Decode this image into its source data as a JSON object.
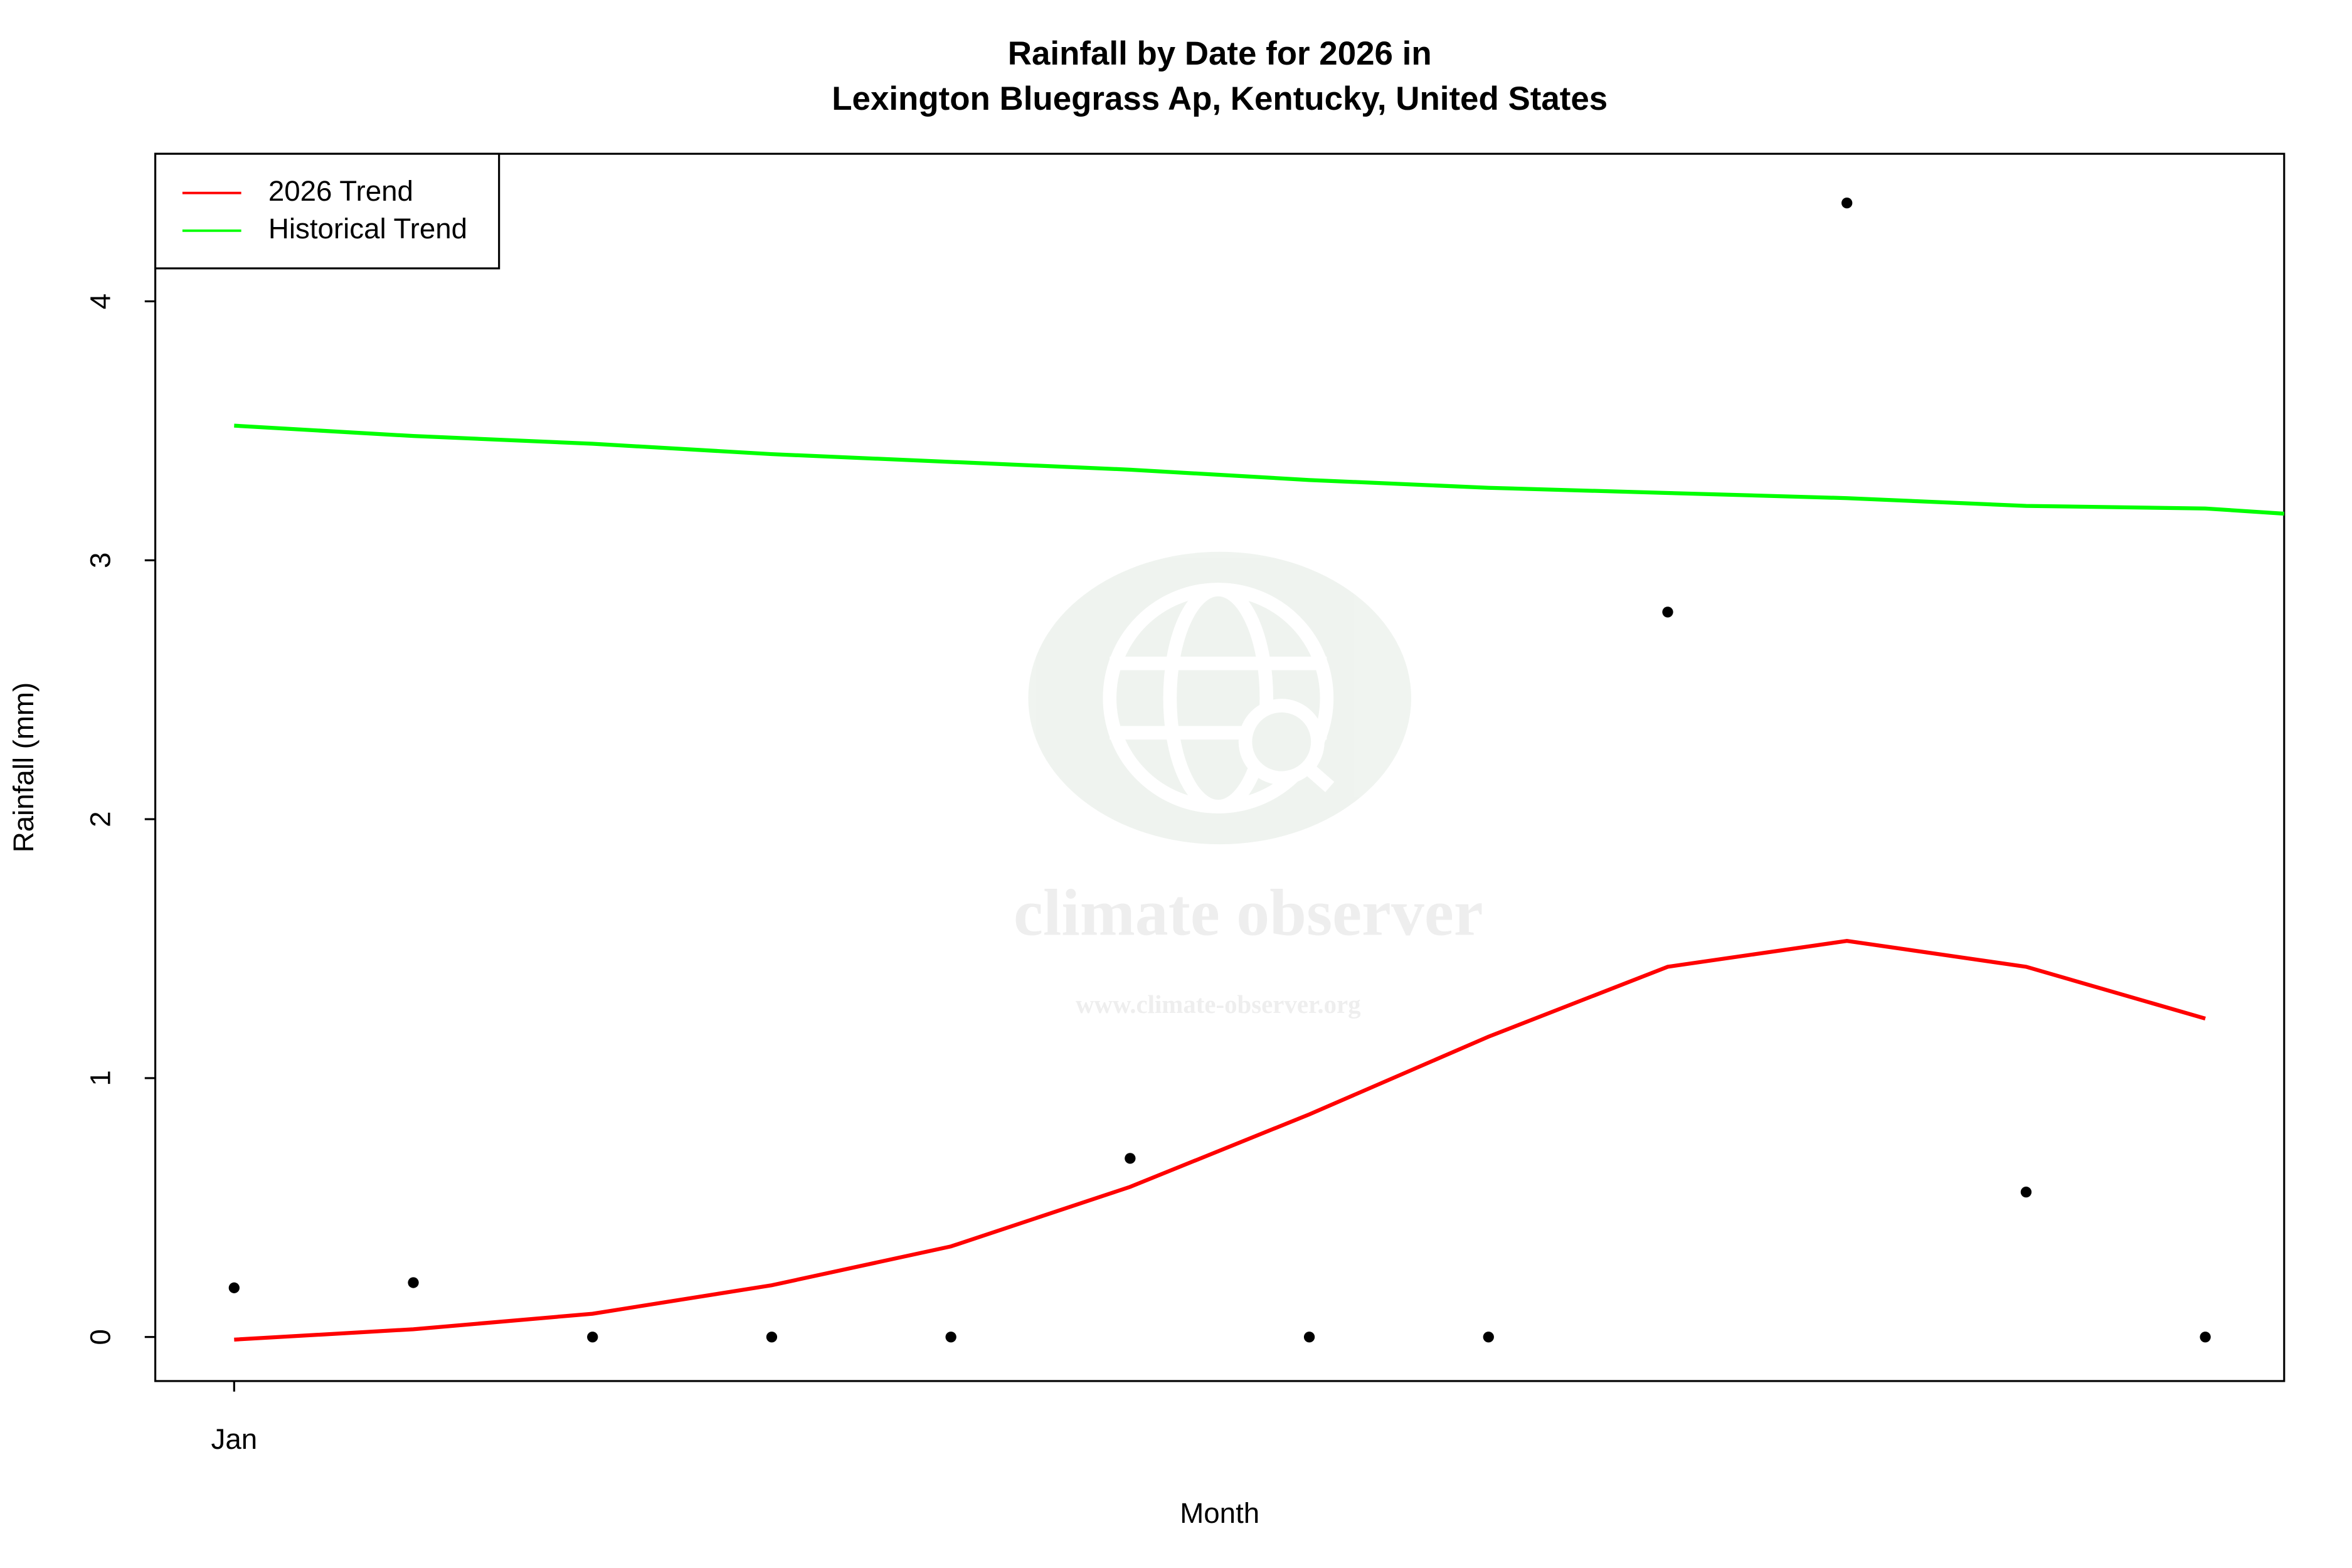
{
  "chart_data": {
    "type": "scatter",
    "title": [
      "Rainfall by Date for 2026 in",
      "Lexington Bluegrass Ap, Kentucky, United States"
    ],
    "x_label": "Month",
    "y_label": "Rainfall (mm)",
    "x": [
      1,
      2,
      3,
      4,
      5,
      6,
      7,
      8,
      9,
      10,
      11,
      12
    ],
    "xlim": [
      0.56,
      12.44
    ],
    "xticks": [
      {
        "value": 1,
        "label": "Jan"
      }
    ],
    "ylim": [
      -0.17,
      4.57
    ],
    "yticks": [
      0,
      1,
      2,
      3,
      4
    ],
    "points": {
      "color": "#000000",
      "values": [
        0.19,
        0.21,
        0,
        0,
        0,
        0.69,
        0,
        0,
        2.8,
        4.38,
        0.56,
        0
      ]
    },
    "series": [
      {
        "name": "2026 Trend",
        "color": "#ff0000",
        "x": [
          1,
          2,
          3,
          4,
          5,
          6,
          7,
          8,
          9,
          10,
          11,
          12
        ],
        "values": [
          -0.01,
          0.03,
          0.09,
          0.2,
          0.35,
          0.58,
          0.86,
          1.16,
          1.43,
          1.53,
          1.43,
          1.23
        ]
      },
      {
        "name": "Historical Trend",
        "color": "#00ff00",
        "x": [
          1,
          2,
          3,
          4,
          5,
          6,
          7,
          8,
          9,
          10,
          11,
          12,
          12.44
        ],
        "values": [
          3.52,
          3.48,
          3.45,
          3.41,
          3.38,
          3.35,
          3.31,
          3.28,
          3.26,
          3.24,
          3.21,
          3.2,
          3.18
        ]
      }
    ],
    "legend": "top-left",
    "watermark": {
      "name": "climate observer",
      "url": "www.climate-observer.org"
    }
  }
}
